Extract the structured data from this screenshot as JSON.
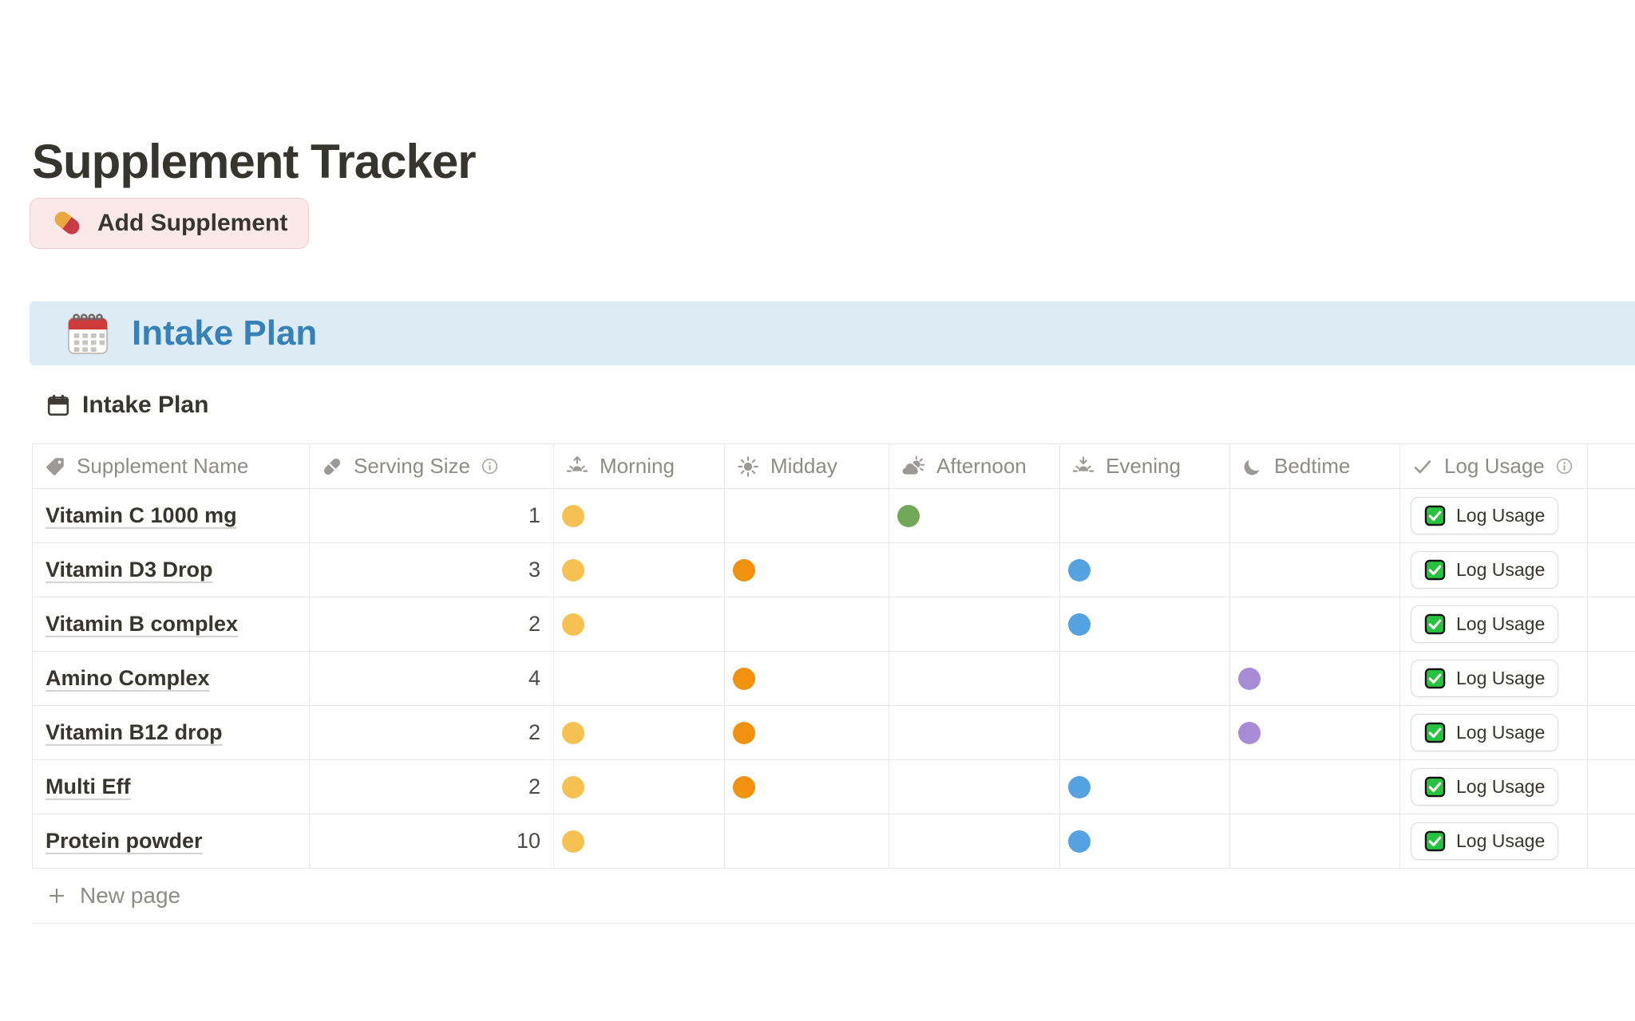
{
  "page": {
    "title": "Supplement Tracker",
    "add_button_label": "Add Supplement",
    "callout_title": "Intake Plan",
    "database_title": "Intake Plan",
    "new_page_label": "New page"
  },
  "table": {
    "columns": [
      {
        "label": "Supplement Name",
        "icon": "tag-icon"
      },
      {
        "label": "Serving Size",
        "icon": "pill-icon",
        "has_info": true
      },
      {
        "label": "Morning",
        "icon": "sunrise-icon"
      },
      {
        "label": "Midday",
        "icon": "sun-icon"
      },
      {
        "label": "Afternoon",
        "icon": "sun-behind-cloud-icon"
      },
      {
        "label": "Evening",
        "icon": "sunset-icon"
      },
      {
        "label": "Bedtime",
        "icon": "crescent-moon-icon"
      },
      {
        "label": "Log Usage",
        "icon": "check-icon",
        "has_info": true
      }
    ],
    "time_keys": [
      "morning",
      "midday",
      "afternoon",
      "evening",
      "bedtime"
    ],
    "dot_colors": {
      "morning": "#f5c152",
      "midday": "#f0920d",
      "afternoon": "#72a958",
      "evening": "#54a3e0",
      "bedtime": "#a68cd5"
    },
    "rows": [
      {
        "name": "Vitamin C 1000 mg",
        "serving": "1",
        "times": [
          "morning",
          "afternoon"
        ],
        "action_label": "Log Usage"
      },
      {
        "name": "Vitamin D3 Drop",
        "serving": "3",
        "times": [
          "morning",
          "midday",
          "evening"
        ],
        "action_label": "Log Usage"
      },
      {
        "name": "Vitamin B complex",
        "serving": "2",
        "times": [
          "morning",
          "evening"
        ],
        "action_label": "Log Usage"
      },
      {
        "name": "Amino Complex",
        "serving": "4",
        "times": [
          "midday",
          "bedtime"
        ],
        "action_label": "Log Usage"
      },
      {
        "name": "Vitamin B12 drop",
        "serving": "2",
        "times": [
          "morning",
          "midday",
          "bedtime"
        ],
        "action_label": "Log Usage"
      },
      {
        "name": "Multi Eff",
        "serving": "2",
        "times": [
          "morning",
          "midday",
          "evening"
        ],
        "action_label": "Log Usage"
      },
      {
        "name": "Protein powder",
        "serving": "10",
        "times": [
          "morning",
          "evening"
        ],
        "action_label": "Log Usage"
      }
    ]
  },
  "colors": {
    "callout_bg": "#ddecf4",
    "callout_text": "#3581b8",
    "add_button_bg": "#fbe8e8",
    "checkbox_green": "#27c33f",
    "text_dark": "#37352f",
    "text_gray": "#8e8c88",
    "border": "#e9e8e6"
  }
}
